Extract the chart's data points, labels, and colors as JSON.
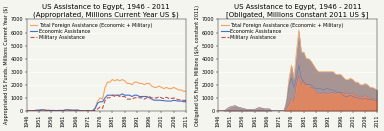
{
  "title_left": "US Assistance to Egypt, 1946 - 2011\n(Appropriated, Millions Current Year US $)",
  "title_right": "US Assistance to Egypt, 1946 - 2011\n[Obligated, Millions Constant 2011 US $]",
  "ylabel_left": "Appropriated US Funds, Millions Current Year ($)",
  "ylabel_right": "Obligated US Funds, Millions ($/A, constant 2011)",
  "years": [
    1946,
    1947,
    1948,
    1949,
    1950,
    1951,
    1952,
    1953,
    1954,
    1955,
    1956,
    1957,
    1958,
    1959,
    1960,
    1961,
    1962,
    1963,
    1964,
    1965,
    1966,
    1967,
    1968,
    1969,
    1970,
    1971,
    1972,
    1973,
    1974,
    1975,
    1976,
    1977,
    1978,
    1979,
    1980,
    1981,
    1982,
    1983,
    1984,
    1985,
    1986,
    1987,
    1988,
    1989,
    1990,
    1991,
    1992,
    1993,
    1994,
    1995,
    1996,
    1997,
    1998,
    1999,
    2000,
    2001,
    2002,
    2003,
    2004,
    2005,
    2006,
    2007,
    2008,
    2009,
    2010,
    2011
  ],
  "left_total": [
    0,
    0,
    0,
    0,
    50,
    50,
    80,
    80,
    40,
    40,
    30,
    30,
    20,
    30,
    30,
    30,
    80,
    80,
    60,
    50,
    55,
    60,
    0,
    0,
    0,
    0,
    0,
    0,
    250,
    750,
    1000,
    900,
    1800,
    2200,
    2200,
    2400,
    2300,
    2400,
    2300,
    2400,
    2300,
    2100,
    2100,
    2000,
    2200,
    2200,
    2100,
    2100,
    2000,
    2100,
    2100,
    1900,
    1800,
    1800,
    1900,
    1800,
    1700,
    1800,
    1700,
    1700,
    1800,
    1700,
    1600,
    1600,
    1500,
    1500
  ],
  "left_economic": [
    0,
    0,
    0,
    0,
    50,
    50,
    80,
    80,
    40,
    40,
    30,
    30,
    20,
    30,
    30,
    30,
    80,
    80,
    60,
    50,
    55,
    60,
    0,
    0,
    0,
    0,
    0,
    0,
    200,
    600,
    700,
    700,
    1000,
    1200,
    1200,
    1200,
    1200,
    1200,
    1200,
    1300,
    1200,
    1200,
    1200,
    1100,
    1200,
    1200,
    1100,
    1100,
    1100,
    1100,
    1000,
    900,
    815,
    815,
    815,
    800,
    775,
    755,
    750,
    750,
    815,
    775,
    750,
    750,
    700,
    700
  ],
  "left_military": [
    0,
    0,
    0,
    0,
    0,
    0,
    0,
    0,
    0,
    0,
    0,
    0,
    0,
    0,
    0,
    0,
    0,
    0,
    0,
    0,
    0,
    0,
    0,
    0,
    0,
    0,
    0,
    0,
    50,
    150,
    300,
    200,
    800,
    1000,
    1000,
    1200,
    1100,
    1200,
    1100,
    1100,
    1100,
    900,
    900,
    900,
    1000,
    1000,
    1000,
    1000,
    900,
    1000,
    1100,
    1000,
    985,
    985,
    1085,
    1000,
    925,
    1045,
    950,
    950,
    985,
    925,
    850,
    850,
    800,
    800
  ],
  "right_total": [
    0,
    0,
    0,
    50,
    200,
    300,
    350,
    400,
    300,
    250,
    200,
    150,
    100,
    100,
    100,
    100,
    200,
    250,
    200,
    150,
    150,
    150,
    0,
    0,
    0,
    0,
    0,
    0,
    800,
    2500,
    3500,
    2500,
    4500,
    6200,
    4500,
    4500,
    4000,
    4000,
    3800,
    3500,
    3200,
    3000,
    3000,
    3000,
    3000,
    3000,
    3000,
    3000,
    2800,
    2800,
    2800,
    2600,
    2400,
    2400,
    2500,
    2400,
    2200,
    2200,
    2000,
    2000,
    2100,
    2000,
    1800,
    1800,
    1700,
    1600
  ],
  "right_economic": [
    0,
    0,
    0,
    50,
    200,
    300,
    350,
    400,
    300,
    250,
    200,
    150,
    100,
    100,
    100,
    100,
    200,
    250,
    200,
    150,
    150,
    150,
    0,
    0,
    0,
    0,
    0,
    0,
    600,
    2000,
    2500,
    1800,
    2500,
    3500,
    2500,
    2200,
    2000,
    2000,
    2000,
    1800,
    1700,
    1700,
    1700,
    1600,
    1700,
    1700,
    1600,
    1600,
    1500,
    1400,
    1400,
    1200,
    1100,
    1100,
    1200,
    1100,
    1000,
    1000,
    950,
    900,
    950,
    900,
    850,
    850,
    800,
    750
  ],
  "right_military": [
    0,
    0,
    0,
    0,
    0,
    0,
    0,
    0,
    0,
    0,
    0,
    0,
    0,
    0,
    0,
    0,
    0,
    0,
    0,
    0,
    0,
    0,
    0,
    0,
    0,
    0,
    0,
    0,
    200,
    500,
    1000,
    700,
    2000,
    2700,
    2000,
    2300,
    2000,
    2000,
    1800,
    1700,
    1500,
    1300,
    1300,
    1400,
    1300,
    1300,
    1400,
    1400,
    1300,
    1400,
    1400,
    1400,
    1300,
    1300,
    1300,
    1300,
    1200,
    1200,
    1050,
    1100,
    1150,
    1100,
    950,
    950,
    900,
    850
  ],
  "color_total": "#F4A460",
  "color_economic": "#4472C4",
  "color_military": "#C0504D",
  "bg_color": "#F5F5F0",
  "grid_color": "#FFFFFF",
  "yticks_left": [
    0,
    1000,
    2000,
    3000,
    4000,
    5000,
    6000,
    7000
  ],
  "yticks_right": [
    0,
    1000,
    2000,
    3000,
    4000,
    5000,
    6000,
    7000
  ],
  "xtick_years": [
    1946,
    1951,
    1956,
    1961,
    1966,
    1971,
    1976,
    1981,
    1986,
    1991,
    1996,
    2001,
    2006,
    2011
  ],
  "legend_labels": [
    "Total Foreign Assistance (Economic + Military)",
    "Economic Assistance",
    "Military Assistance"
  ],
  "title_fontsize": 5.0,
  "label_fontsize": 4.0,
  "tick_fontsize": 3.5,
  "legend_fontsize": 3.5
}
